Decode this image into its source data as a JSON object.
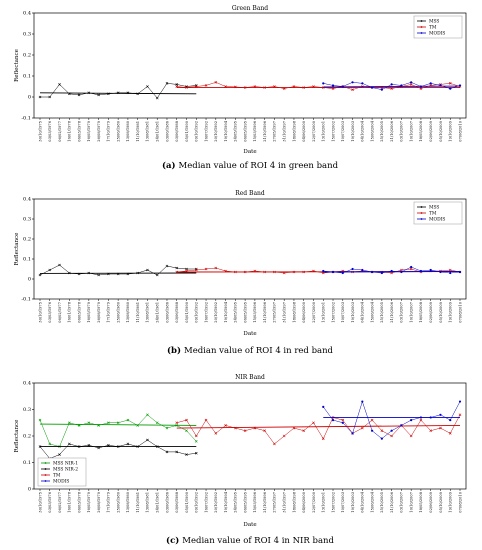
{
  "chart_data": [
    {
      "type": "line",
      "title": "Green Band",
      "xlabel": "Date",
      "ylabel": "Reflectance",
      "ylim": [
        -0.1,
        0.4
      ],
      "yticks": [
        "-0.1",
        "0",
        "0.1",
        "0.2",
        "0.3",
        "0.4"
      ],
      "legend_position": "top-right",
      "caption_label": "(a)",
      "caption_text": "Median value of ROI 4 in green band",
      "series": [
        {
          "name": "MSS",
          "color": "#000000",
          "marker": "x",
          "x": [
            0,
            1,
            2,
            3,
            4,
            5,
            6,
            7,
            8,
            9,
            10,
            11,
            12,
            13,
            14,
            15,
            16
          ],
          "y": [
            0.0,
            0.0,
            0.06,
            0.015,
            0.01,
            0.02,
            0.01,
            0.015,
            0.02,
            0.02,
            0.015,
            0.05,
            -0.005,
            0.065,
            0.06,
            0.05,
            0.055
          ],
          "trend": [
            0.02,
            0.015
          ]
        },
        {
          "name": "TM",
          "color": "#cc0000",
          "marker": "x",
          "x": [
            14,
            15,
            16,
            17,
            18,
            19,
            20,
            21,
            22,
            23,
            24,
            25,
            26,
            27,
            28,
            29,
            30,
            31,
            32,
            33,
            34,
            35,
            36,
            37,
            38,
            39,
            40,
            41,
            42,
            43
          ],
          "y": [
            0.05,
            0.045,
            0.05,
            0.055,
            0.07,
            0.05,
            0.048,
            0.045,
            0.05,
            0.045,
            0.05,
            0.04,
            0.05,
            0.045,
            0.05,
            0.045,
            0.04,
            0.05,
            0.035,
            0.05,
            0.045,
            0.045,
            0.04,
            0.05,
            0.06,
            0.04,
            0.055,
            0.06,
            0.065,
            0.05
          ],
          "trend": [
            0.045,
            0.045
          ]
        },
        {
          "name": "MODIS",
          "color": "#0000cc",
          "marker": "*",
          "x": [
            29,
            30,
            31,
            32,
            33,
            34,
            35,
            36,
            37,
            38,
            39,
            40,
            41,
            42,
            43
          ],
          "y": [
            0.065,
            0.055,
            0.05,
            0.07,
            0.065,
            0.045,
            0.035,
            0.06,
            0.055,
            0.07,
            0.05,
            0.065,
            0.055,
            0.04,
            0.055
          ],
          "trend": [
            0.048,
            0.052
          ]
        }
      ]
    },
    {
      "type": "line",
      "title": "Red Band",
      "xlabel": "Date",
      "ylabel": "Reflectance",
      "ylim": [
        -0.1,
        0.4
      ],
      "yticks": [
        "-0.1",
        "0",
        "0.1",
        "0.2",
        "0.3",
        "0.4"
      ],
      "legend_position": "top-right",
      "caption_label": "(b)",
      "caption_text": "Median value of ROI 4 in red band",
      "series": [
        {
          "name": "MSS",
          "color": "#000000",
          "marker": "x",
          "x": [
            0,
            1,
            2,
            3,
            4,
            5,
            6,
            7,
            8,
            9,
            10,
            11,
            12,
            13,
            14,
            15,
            16
          ],
          "y": [
            0.02,
            0.045,
            0.07,
            0.03,
            0.025,
            0.03,
            0.02,
            0.025,
            0.025,
            0.025,
            0.03,
            0.045,
            0.02,
            0.065,
            0.055,
            0.05,
            0.05
          ],
          "trend": [
            0.028,
            0.03
          ]
        },
        {
          "name": "TM",
          "color": "#cc0000",
          "marker": "x",
          "x": [
            14,
            15,
            16,
            17,
            18,
            19,
            20,
            21,
            22,
            23,
            24,
            25,
            26,
            27,
            28,
            29,
            30,
            31,
            32,
            33,
            34,
            35,
            36,
            37,
            38,
            39,
            40,
            41,
            42,
            43
          ],
          "y": [
            0.035,
            0.04,
            0.045,
            0.05,
            0.055,
            0.04,
            0.035,
            0.035,
            0.04,
            0.035,
            0.035,
            0.03,
            0.035,
            0.035,
            0.04,
            0.03,
            0.035,
            0.04,
            0.035,
            0.04,
            0.035,
            0.035,
            0.03,
            0.045,
            0.05,
            0.035,
            0.04,
            0.04,
            0.045,
            0.035
          ],
          "trend": [
            0.035,
            0.037
          ]
        },
        {
          "name": "MODIS",
          "color": "#0000cc",
          "marker": "*",
          "x": [
            29,
            30,
            31,
            32,
            33,
            34,
            35,
            36,
            37,
            38,
            39,
            40,
            41,
            42,
            43
          ],
          "y": [
            0.04,
            0.035,
            0.03,
            0.05,
            0.045,
            0.035,
            0.03,
            0.04,
            0.035,
            0.06,
            0.04,
            0.045,
            0.035,
            0.03,
            0.035
          ],
          "trend": [
            0.035,
            0.038
          ]
        }
      ]
    },
    {
      "type": "line",
      "title": "NIR Band",
      "xlabel": "Date",
      "ylabel": "Reflectance",
      "ylim": [
        0,
        0.4
      ],
      "yticks": [
        "0",
        "0.1",
        "0.2",
        "0.3",
        "0.4"
      ],
      "legend_position": "bottom-left",
      "caption_label": "(c)",
      "caption_text": "Median value of ROI 4 in NIR band",
      "series": [
        {
          "name": "MSS NIR-1",
          "color": "#009900",
          "marker": "x",
          "x": [
            0,
            1,
            2,
            3,
            4,
            5,
            6,
            7,
            8,
            9,
            10,
            11,
            12,
            13,
            14,
            15,
            16
          ],
          "y": [
            0.26,
            0.17,
            0.16,
            0.25,
            0.24,
            0.25,
            0.24,
            0.25,
            0.25,
            0.26,
            0.24,
            0.28,
            0.25,
            0.23,
            0.24,
            0.22,
            0.18
          ],
          "trend": [
            0.245,
            0.24
          ]
        },
        {
          "name": "MSS NIR-2",
          "color": "#000000",
          "marker": "x",
          "x": [
            0,
            1,
            2,
            3,
            4,
            5,
            6,
            7,
            8,
            9,
            10,
            11,
            12,
            13,
            14,
            15,
            16
          ],
          "y": [
            0.16,
            0.115,
            0.13,
            0.17,
            0.16,
            0.165,
            0.155,
            0.165,
            0.16,
            0.17,
            0.16,
            0.185,
            0.16,
            0.14,
            0.14,
            0.13,
            0.135
          ],
          "trend": [
            0.16,
            0.16
          ]
        },
        {
          "name": "TM",
          "color": "#cc0000",
          "marker": "x",
          "x": [
            14,
            15,
            16,
            17,
            18,
            19,
            20,
            21,
            22,
            23,
            24,
            25,
            26,
            27,
            28,
            29,
            30,
            31,
            32,
            33,
            34,
            35,
            36,
            37,
            38,
            39,
            40,
            41,
            42,
            43
          ],
          "y": [
            0.25,
            0.26,
            0.2,
            0.26,
            0.21,
            0.24,
            0.23,
            0.22,
            0.23,
            0.22,
            0.17,
            0.2,
            0.23,
            0.22,
            0.25,
            0.19,
            0.27,
            0.26,
            0.21,
            0.23,
            0.26,
            0.22,
            0.2,
            0.24,
            0.2,
            0.26,
            0.22,
            0.23,
            0.21,
            0.28
          ],
          "trend": [
            0.23,
            0.24
          ]
        },
        {
          "name": "MODIS",
          "color": "#0000cc",
          "marker": "*",
          "x": [
            29,
            30,
            31,
            32,
            33,
            34,
            35,
            36,
            37,
            38,
            39,
            40,
            41,
            42,
            43
          ],
          "y": [
            0.31,
            0.26,
            0.25,
            0.21,
            0.33,
            0.22,
            0.19,
            0.22,
            0.24,
            0.26,
            0.27,
            0.27,
            0.28,
            0.26,
            0.33
          ],
          "trend": [
            0.27,
            0.27
          ]
        }
      ]
    }
  ],
  "x_tick_labels": [
    "30/10/1975",
    "03/03/1976",
    "06/02/1977",
    "16/01/1978",
    "06/03/1978",
    "16/05/1979",
    "26/08/1979",
    "17/10/1979",
    "25/06/1980",
    "13/08/1980",
    "11/10/1981",
    "13/08/1981",
    "24/01/1981",
    "03/06/1986",
    "03/06/1988",
    "05/01/1990",
    "09/10/1992",
    "16/07/1992",
    "20/10/1992",
    "19/10/1994",
    "24/05/1995",
    "06/05/1995",
    "15/03/1996",
    "21/10/1996",
    "27/05/1997",
    "31/10/1997",
    "18/08/1998",
    "04/06/2000",
    "22/07/2000",
    "13/10/2001",
    "15/07/2002",
    "10/07/2003",
    "19/10/2003",
    "04/10/2004",
    "15/06/2004",
    "25/10/2005",
    "21/10/2006",
    "03/10/2007",
    "10/10/2007",
    "18/05/2008",
    "02/06/2009",
    "05/10/2009",
    "19/10/2009",
    "07/08/2010"
  ]
}
